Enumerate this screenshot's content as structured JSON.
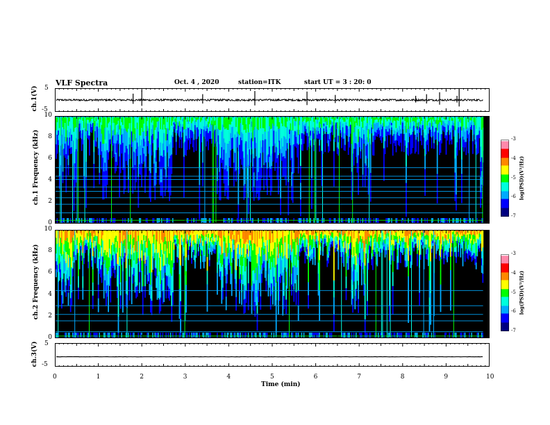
{
  "header": {
    "title": "VLF Spectra",
    "date": "Oct. 4 , 2020",
    "station": "station=ITK",
    "start_ut": "start UT = 3 : 20: 0"
  },
  "colors": {
    "colormap": [
      "#000080",
      "#0000ff",
      "#00aaff",
      "#00ffdd",
      "#00ff00",
      "#ffff00",
      "#ff8800",
      "#ff0000",
      "#ff88aa",
      "#ffffff"
    ],
    "trace": "#000000",
    "spectrogram_background": "#000000"
  },
  "chart_data": [
    {
      "type": "line",
      "name": "ch1-waveform",
      "ylabel": "ch.1(V)",
      "ylim": [
        -5,
        5
      ],
      "yticks": [
        "5",
        "-5"
      ],
      "x_range_min": [
        0,
        9.85
      ],
      "baseline_v": 0.0,
      "noise_amplitude_v": 0.4,
      "spikes_min": [
        1.8,
        2.0,
        3.4,
        4.6,
        5.8,
        6.45,
        8.3,
        8.55,
        8.85,
        9.25,
        9.3
      ]
    },
    {
      "type": "heatmap",
      "name": "ch1-spectrogram",
      "ylabel": "ch.1 Frequency (kHz)",
      "ylim": [
        0,
        10
      ],
      "yticks": [
        "0",
        "2",
        "4",
        "6",
        "8",
        "10"
      ],
      "x_range_min": [
        0,
        9.85
      ],
      "colorbar": {
        "label": "log(PSD)(V²/Hz)",
        "range": [
          -7,
          -3
        ],
        "ticks": [
          "-3",
          "-4",
          "-5",
          "-6",
          "-7"
        ]
      },
      "horizontal_lines_khz": [
        0.3,
        1.0,
        1.8,
        2.4,
        3.0,
        3.4,
        4.1,
        4.4,
        5.2,
        9.9
      ],
      "quiet_intervals_min": [
        [
          0.5,
          1.0
        ],
        [
          2.7,
          3.7
        ],
        [
          5.6,
          6.8
        ],
        [
          7.2,
          9.8
        ]
      ]
    },
    {
      "type": "heatmap",
      "name": "ch2-spectrogram",
      "ylabel": "ch.2 Frequency (kHz)",
      "ylim": [
        0,
        10
      ],
      "yticks": [
        "0",
        "2",
        "4",
        "6",
        "8",
        "10"
      ],
      "x_range_min": [
        0,
        9.85
      ],
      "colorbar": {
        "label": "log(PSD)(V²/Hz)",
        "range": [
          -7,
          -3
        ],
        "ticks": [
          "-3",
          "-4",
          "-5",
          "-6",
          "-7"
        ]
      },
      "horizontal_lines_khz": [
        0.2,
        0.6,
        1.6,
        2.2,
        3.0,
        4.4
      ],
      "quiet_intervals_min": [
        [
          0.5,
          1.0
        ],
        [
          2.7,
          3.7
        ],
        [
          5.6,
          6.8
        ],
        [
          7.2,
          9.8
        ]
      ]
    },
    {
      "type": "line",
      "name": "ch3-waveform",
      "ylabel": "ch.3(V)",
      "ylim": [
        -5,
        5
      ],
      "yticks": [
        "5",
        "-5"
      ],
      "x_range_min": [
        0,
        9.85
      ],
      "baseline_v": -0.8,
      "noise_amplitude_v": 0.05,
      "xlabel": "Time (min)",
      "xlim": [
        0,
        10
      ],
      "xticks": [
        "0",
        "1",
        "2",
        "3",
        "4",
        "5",
        "6",
        "7",
        "8",
        "9",
        "10"
      ]
    }
  ]
}
